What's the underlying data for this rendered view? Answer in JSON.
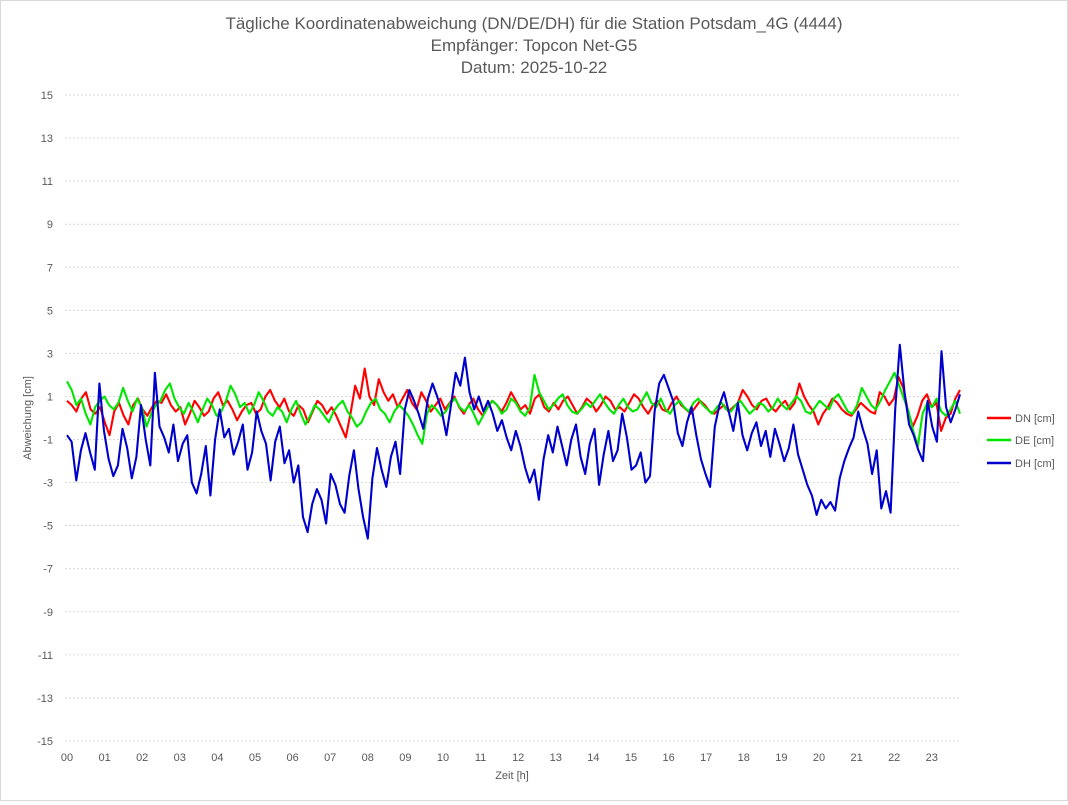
{
  "chart_data": {
    "type": "line",
    "title_lines": [
      "Tägliche Koordinatenabweichung (DN/DE/DH) für die Station Potsdam_4G (4444)",
      "Empfänger: Topcon Net-G5",
      "Datum: 2025-10-22"
    ],
    "xlabel": "Zeit [h]",
    "ylabel": "Abweichung [cm]",
    "ylim": [
      -15,
      15
    ],
    "xlim": [
      0,
      23.75
    ],
    "yticks": [
      "15",
      "13",
      "11",
      "9",
      "7",
      "5",
      "3",
      "1",
      "-1",
      "-3",
      "-5",
      "-7",
      "-9",
      "-11",
      "-13",
      "-15"
    ],
    "xticks": [
      "00",
      "01",
      "02",
      "03",
      "04",
      "05",
      "06",
      "07",
      "08",
      "09",
      "10",
      "11",
      "12",
      "13",
      "14",
      "15",
      "16",
      "17",
      "18",
      "19",
      "20",
      "21",
      "22",
      "23"
    ],
    "grid": true,
    "legend_position": "right",
    "series": [
      {
        "name": "DN [cm]",
        "color": "#ff0000",
        "values": [
          0.8,
          0.6,
          0.3,
          0.9,
          1.2,
          0.4,
          0.2,
          0.5,
          -0.2,
          -0.8,
          0.3,
          0.7,
          0.1,
          -0.3,
          0.6,
          0.9,
          0.4,
          0.1,
          0.5,
          0.8,
          0.7,
          1.1,
          0.6,
          0.3,
          0.5,
          -0.3,
          0.2,
          0.8,
          0.5,
          0.1,
          0.3,
          0.9,
          1.2,
          0.6,
          0.8,
          0.4,
          -0.1,
          0.3,
          0.6,
          0.7,
          0.2,
          0.4,
          1.0,
          1.3,
          0.8,
          0.5,
          0.9,
          0.3,
          0.1,
          0.6,
          0.4,
          -0.2,
          0.3,
          0.8,
          0.6,
          0.2,
          0.5,
          0.1,
          -0.4,
          -0.9,
          0.2,
          1.5,
          0.9,
          2.3,
          1.0,
          0.6,
          1.8,
          1.2,
          0.8,
          1.1,
          0.5,
          0.9,
          1.3,
          0.7,
          0.4,
          1.2,
          0.8,
          0.3,
          0.6,
          0.9,
          0.4,
          0.7,
          1.0,
          0.5,
          0.2,
          0.6,
          0.9,
          0.4,
          0.1,
          0.5,
          0.8,
          0.6,
          0.3,
          0.7,
          1.2,
          0.8,
          0.4,
          0.6,
          0.2,
          0.9,
          1.1,
          0.5,
          0.3,
          0.7,
          0.4,
          0.8,
          1.0,
          0.6,
          0.2,
          0.5,
          0.9,
          0.7,
          0.3,
          0.6,
          1.0,
          0.8,
          0.4,
          0.5,
          0.3,
          0.7,
          1.1,
          0.9,
          0.5,
          0.2,
          0.6,
          0.8,
          0.4,
          0.3,
          0.7,
          1.0,
          0.6,
          0.4,
          0.2,
          0.5,
          0.8,
          0.6,
          0.3,
          0.2,
          0.4,
          0.6,
          0.3,
          0.5,
          0.7,
          1.3,
          1.0,
          0.6,
          0.4,
          0.8,
          0.9,
          0.5,
          0.3,
          0.6,
          0.8,
          0.4,
          0.7,
          1.6,
          1.0,
          0.6,
          0.3,
          -0.3,
          0.2,
          0.5,
          0.9,
          0.7,
          0.4,
          0.2,
          0.1,
          0.4,
          0.7,
          0.5,
          0.3,
          0.2,
          1.2,
          1.0,
          0.6,
          0.9,
          1.9,
          1.4,
          0.3,
          -0.4,
          0.1,
          0.8,
          1.1,
          0.5,
          0.7,
          -0.6,
          0.0,
          0.2,
          0.9,
          1.3
        ],
        "note": "approximate visual trace"
      },
      {
        "name": "DE [cm]",
        "color": "#00e600",
        "values": [
          1.7,
          1.3,
          0.6,
          0.9,
          0.2,
          -0.3,
          0.5,
          0.8,
          1.0,
          0.6,
          0.4,
          0.7,
          1.4,
          0.8,
          0.3,
          0.9,
          0.5,
          -0.4,
          0.2,
          0.6,
          0.8,
          1.3,
          1.6,
          0.9,
          0.5,
          0.2,
          0.7,
          0.3,
          -0.2,
          0.4,
          0.9,
          0.6,
          0.1,
          0.3,
          0.8,
          1.5,
          1.1,
          0.5,
          0.7,
          0.2,
          0.6,
          1.2,
          0.8,
          0.3,
          0.1,
          0.5,
          0.3,
          -0.2,
          0.4,
          0.8,
          0.2,
          -0.3,
          0.1,
          0.6,
          0.4,
          0.1,
          -0.2,
          0.3,
          0.6,
          0.8,
          0.3,
          0.0,
          -0.4,
          -0.2,
          0.3,
          0.7,
          0.9,
          0.4,
          0.2,
          -0.2,
          0.3,
          0.6,
          0.4,
          0.1,
          -0.3,
          -0.8,
          -1.2,
          0.2,
          0.6,
          0.4,
          0.1,
          0.3,
          0.7,
          0.9,
          0.5,
          0.3,
          0.6,
          0.2,
          -0.3,
          0.1,
          0.5,
          0.8,
          0.6,
          0.2,
          0.4,
          0.9,
          0.7,
          0.3,
          0.1,
          0.5,
          2.0,
          1.2,
          0.8,
          0.4,
          0.6,
          0.9,
          1.1,
          0.6,
          0.3,
          0.2,
          0.4,
          0.7,
          0.5,
          0.8,
          1.1,
          0.7,
          0.4,
          0.2,
          0.6,
          0.9,
          0.5,
          0.3,
          0.4,
          0.8,
          1.2,
          0.7,
          0.5,
          0.9,
          0.4,
          0.2,
          0.6,
          0.8,
          0.5,
          0.3,
          0.7,
          0.9,
          0.6,
          0.4,
          0.2,
          0.5,
          0.7,
          0.4,
          0.3,
          0.6,
          0.8,
          0.5,
          0.2,
          0.4,
          0.7,
          0.6,
          0.3,
          0.5,
          0.9,
          0.6,
          0.4,
          0.7,
          1.0,
          0.8,
          0.3,
          0.2,
          0.5,
          0.8,
          0.6,
          0.4,
          0.9,
          1.1,
          0.7,
          0.3,
          0.2,
          0.6,
          1.4,
          1.0,
          0.6,
          0.4,
          0.8,
          1.3,
          1.7,
          2.1,
          1.5,
          0.9,
          0.3,
          -0.6,
          -1.3,
          0.2,
          0.7,
          0.5,
          0.9,
          0.3,
          0.1,
          0.4,
          0.8,
          0.2
        ],
        "note": "approximate visual trace"
      },
      {
        "name": "DH [cm]",
        "color": "#0000cc",
        "values": [
          -0.8,
          -1.1,
          -2.9,
          -1.5,
          -0.7,
          -1.6,
          -2.4,
          1.6,
          -0.6,
          -1.9,
          -2.7,
          -2.2,
          -0.5,
          -1.4,
          -2.8,
          -1.8,
          0.6,
          -1.0,
          -2.2,
          2.1,
          -0.4,
          -0.9,
          -1.6,
          -0.3,
          -2.0,
          -1.2,
          -0.8,
          -3.0,
          -3.5,
          -2.6,
          -1.3,
          -3.6,
          -1.0,
          0.4,
          -0.9,
          -0.5,
          -1.7,
          -1.1,
          -0.3,
          -2.4,
          -1.6,
          0.3,
          -0.6,
          -1.2,
          -2.9,
          -1.1,
          -0.4,
          -2.1,
          -1.5,
          -3.0,
          -2.2,
          -4.6,
          -5.3,
          -4.0,
          -3.3,
          -3.8,
          -4.9,
          -2.6,
          -3.1,
          -4.0,
          -4.4,
          -2.7,
          -1.5,
          -3.3,
          -4.6,
          -5.6,
          -2.8,
          -1.4,
          -2.4,
          -3.2,
          -1.8,
          -1.1,
          -2.6,
          0.4,
          1.3,
          0.8,
          0.2,
          -0.5,
          0.9,
          1.6,
          1.0,
          0.3,
          -0.8,
          0.6,
          2.1,
          1.5,
          2.8,
          1.2,
          0.4,
          1.0,
          0.3,
          0.8,
          0.2,
          -0.6,
          -0.1,
          -0.9,
          -1.5,
          -0.6,
          -1.3,
          -2.3,
          -3.0,
          -2.4,
          -3.8,
          -1.9,
          -0.8,
          -1.6,
          -0.4,
          -1.3,
          -2.2,
          -1.0,
          -0.3,
          -1.8,
          -2.6,
          -1.2,
          -0.5,
          -3.1,
          -1.7,
          -0.6,
          -2.0,
          -1.5,
          0.2,
          -0.9,
          -2.4,
          -2.2,
          -1.6,
          -3.0,
          -2.7,
          0.3,
          1.6,
          2.0,
          1.4,
          0.8,
          -0.7,
          -1.3,
          -0.2,
          0.5,
          -0.8,
          -1.9,
          -2.6,
          -3.2,
          -0.4,
          0.6,
          1.2,
          0.3,
          -0.6,
          0.7,
          -0.8,
          -1.5,
          -0.7,
          -0.2,
          -1.3,
          -0.6,
          -1.8,
          -0.5,
          -1.2,
          -2.0,
          -1.4,
          -0.3,
          -1.7,
          -2.4,
          -3.1,
          -3.6,
          -4.5,
          -3.8,
          -4.2,
          -3.9,
          -4.3,
          -2.8,
          -2.0,
          -1.4,
          -0.9,
          0.3,
          -0.5,
          -1.2,
          -2.6,
          -1.5,
          -4.2,
          -3.4,
          -4.4,
          0.4,
          3.4,
          1.2,
          -0.3,
          -0.8,
          -1.5,
          -2.0,
          0.8,
          -0.4,
          -1.1,
          3.1,
          0.5,
          -0.2,
          0.4,
          1.1
        ],
        "note": "approximate visual trace"
      }
    ]
  }
}
